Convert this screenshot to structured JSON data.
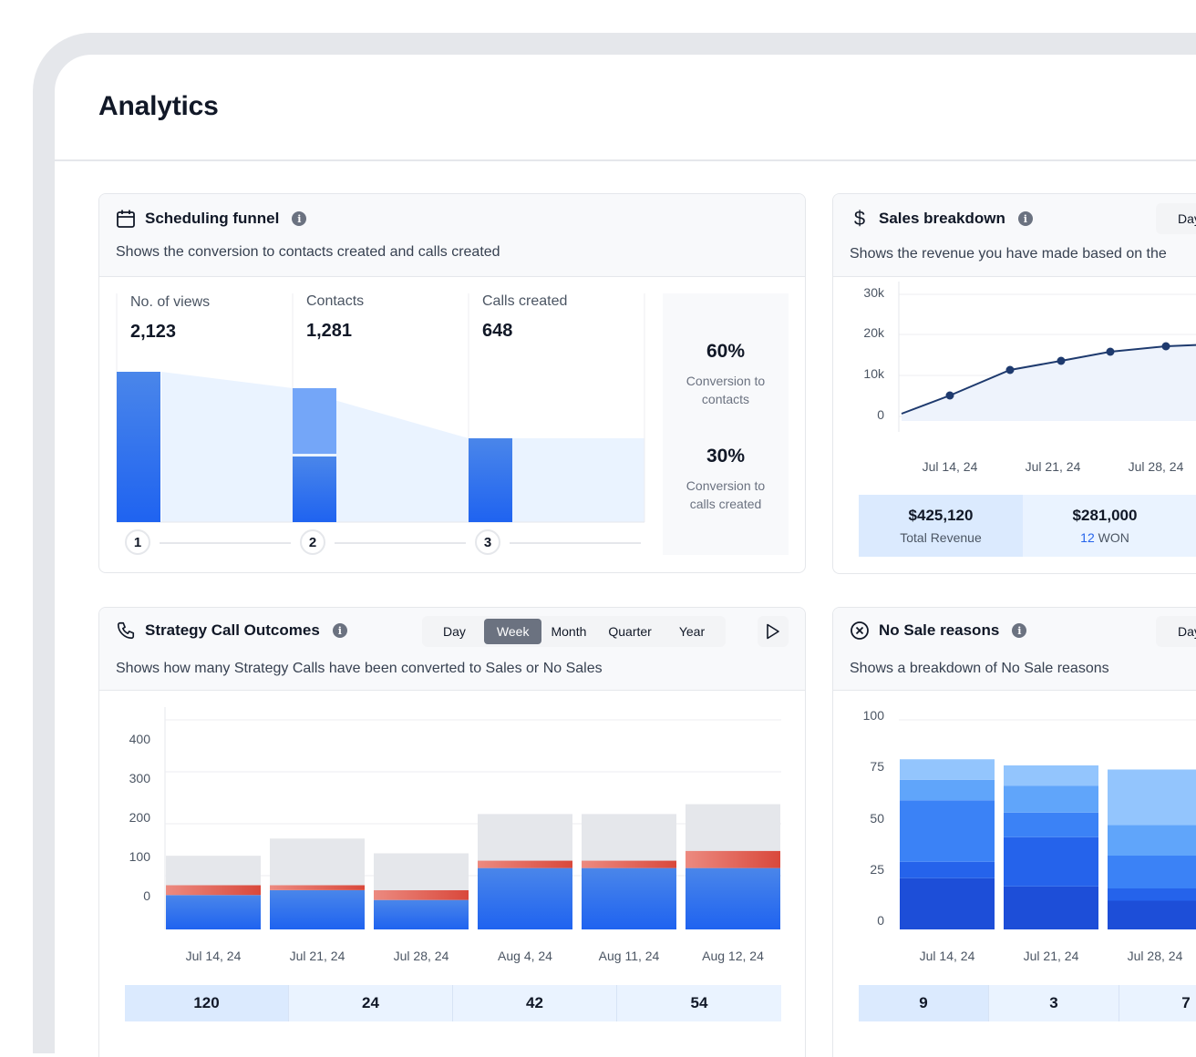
{
  "page": {
    "title": "Analytics"
  },
  "funnel": {
    "title": "Scheduling funnel",
    "description": "Shows the conversion to contacts created and calls created",
    "columns": [
      {
        "label": "No. of views",
        "value": "2,123",
        "step": "1"
      },
      {
        "label": "Contacts",
        "value": "1,281",
        "step": "2"
      },
      {
        "label": "Calls created",
        "value": "648",
        "step": "3"
      }
    ],
    "conversions": [
      {
        "pct": "60%",
        "label_line1": "Conversion to",
        "label_line2": "contacts"
      },
      {
        "pct": "30%",
        "label_line1": "Conversion to",
        "label_line2": "calls created"
      }
    ]
  },
  "sales": {
    "title": "Sales breakdown",
    "description": "Shows the revenue you have made based on the",
    "period_button": "Day",
    "summary": {
      "total_value": "$425,120",
      "total_label": "Total Revenue",
      "won_value": "$281,000",
      "won_count": "12",
      "won_label": "WON"
    }
  },
  "outcomes": {
    "title": "Strategy Call Outcomes",
    "description": "Shows how many Strategy Calls have been converted to Sales or No Sales",
    "periods": [
      "Day",
      "Week",
      "Month",
      "Quarter",
      "Year"
    ],
    "active_period": "Week",
    "totals": [
      "120",
      "24",
      "42",
      "54"
    ]
  },
  "nosale": {
    "title": "No Sale reasons",
    "description": "Shows a breakdown of No Sale reasons",
    "period_button": "Day",
    "totals": [
      "9",
      "3",
      "7"
    ]
  },
  "chart_data": [
    {
      "type": "line",
      "x": [
        "Jul 14, 24",
        "Jul 21, 24",
        "Jul 28, 24"
      ],
      "y_ticks": [
        "30k",
        "20k",
        "10k",
        "0"
      ],
      "points": [
        {
          "x": "start",
          "y": -3000
        },
        {
          "x": "Jul 14, 24",
          "y": 2000
        },
        {
          "x": "",
          "y": 9000
        },
        {
          "x": "Jul 21, 24",
          "y": 11500
        },
        {
          "x": "",
          "y": 14000
        },
        {
          "x": "Jul 28, 24",
          "y": 15500
        },
        {
          "x": "end",
          "y": 16500
        }
      ],
      "ylim": [
        0,
        30000
      ]
    },
    {
      "type": "bar",
      "stacked": true,
      "categories": [
        "Jul 14, 24",
        "Jul 21, 24",
        "Jul 28, 24",
        "Aug 4, 24",
        "Aug 11, 24",
        "Aug 12, 24"
      ],
      "y_ticks": [
        "400",
        "300",
        "200",
        "100",
        "0"
      ],
      "ylim": [
        0,
        400
      ],
      "series": [
        {
          "color": "#3b82f6",
          "values": [
            70,
            80,
            60,
            125,
            125,
            125
          ]
        },
        {
          "color": "#ef4444",
          "values": [
            20,
            10,
            20,
            15,
            15,
            35
          ]
        },
        {
          "color": "#e5e7eb",
          "values": [
            60,
            95,
            75,
            95,
            95,
            95
          ]
        }
      ]
    },
    {
      "type": "bar",
      "stacked": true,
      "categories": [
        "Jul 14, 24",
        "Jul 21, 24",
        "Jul 28, 24"
      ],
      "y_ticks": [
        "100",
        "75",
        "50",
        "25",
        "0"
      ],
      "ylim": [
        0,
        100
      ],
      "series": [
        {
          "color": "#1d4ed8",
          "values": [
            25,
            21,
            14
          ]
        },
        {
          "color": "#2563eb",
          "values": [
            8,
            24,
            6
          ]
        },
        {
          "color": "#3b82f6",
          "values": [
            30,
            12,
            16
          ]
        },
        {
          "color": "#60a5fa",
          "values": [
            10,
            13,
            15
          ]
        },
        {
          "color": "#93c5fd",
          "values": [
            10,
            10,
            27
          ]
        }
      ]
    }
  ]
}
